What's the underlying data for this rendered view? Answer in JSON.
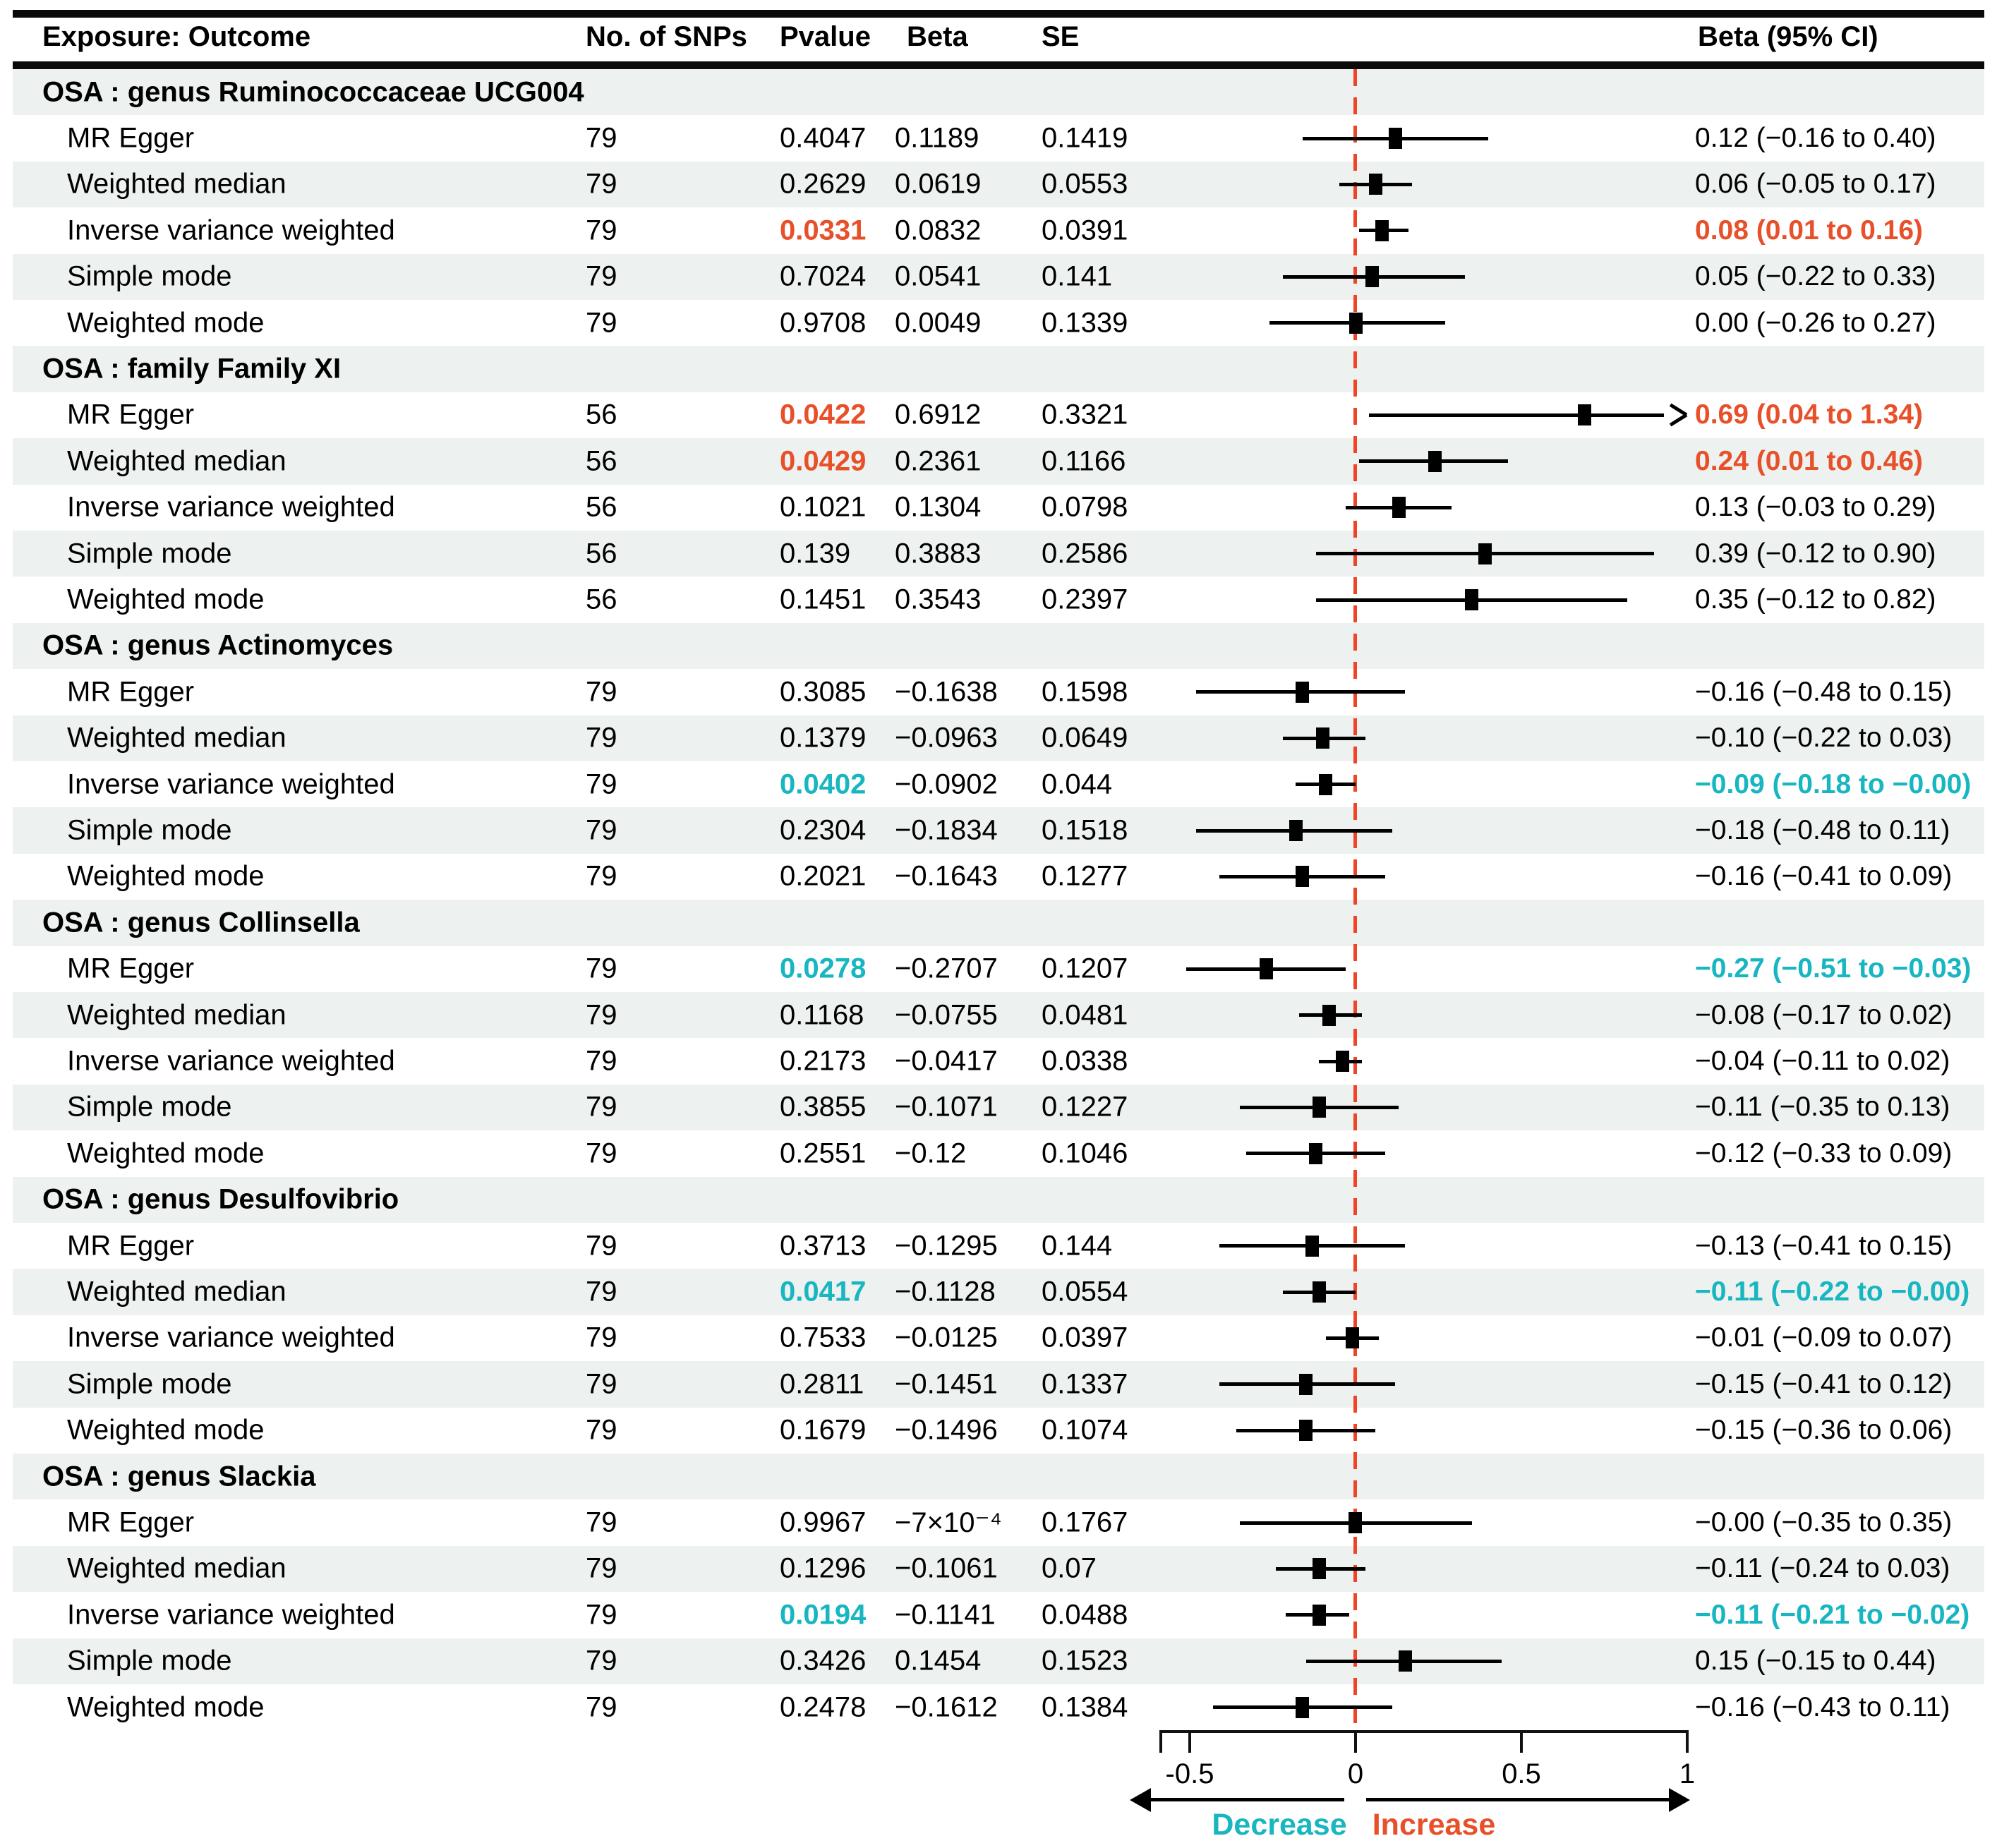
{
  "figure": {
    "colors": {
      "significant_positive": "#e8502a",
      "significant_negative": "#17b6c1",
      "stripe": "#edf1ef",
      "marker": "#000000",
      "zero_line": "#f04427"
    },
    "axis": {
      "tick_labels": [
        "-0.5",
        "0",
        "0.5",
        "1"
      ],
      "tick_values": [
        -0.5,
        0,
        0.5,
        1
      ],
      "decrease_label": "Decrease",
      "increase_label": "Increase"
    }
  },
  "chart_data": {
    "type": "forest",
    "title": "",
    "columns": [
      "Exposure: Outcome",
      "No. of SNPs",
      "Pvalue",
      "Beta",
      "SE",
      "Beta (95% CI)"
    ],
    "xlim": [
      -0.5,
      1
    ],
    "zero_line": 0,
    "legend_note": {
      "decrease": "Decrease",
      "increase": "Increase"
    },
    "groups": [
      {
        "label": "OSA : genus Ruminococcaceae UCG004",
        "rows": [
          {
            "method": "MR Egger",
            "snps": "79",
            "pvalue": "0.4047",
            "beta": "0.1189",
            "se": "0.1419",
            "est": 0.12,
            "lo": -0.16,
            "hi": 0.4,
            "ci_text": "0.12 (−0.16 to 0.40)",
            "sig": null,
            "clip_hi": false
          },
          {
            "method": "Weighted median",
            "snps": "79",
            "pvalue": "0.2629",
            "beta": "0.0619",
            "se": "0.0553",
            "est": 0.06,
            "lo": -0.05,
            "hi": 0.17,
            "ci_text": "0.06 (−0.05 to 0.17)",
            "sig": null,
            "clip_hi": false
          },
          {
            "method": "Inverse variance weighted",
            "snps": "79",
            "pvalue": "0.0331",
            "beta": "0.0832",
            "se": "0.0391",
            "est": 0.08,
            "lo": 0.01,
            "hi": 0.16,
            "ci_text": "0.08 (0.01 to 0.16)",
            "sig": "pos",
            "clip_hi": false
          },
          {
            "method": "Simple mode",
            "snps": "79",
            "pvalue": "0.7024",
            "beta": "0.0541",
            "se": "0.141",
            "est": 0.05,
            "lo": -0.22,
            "hi": 0.33,
            "ci_text": "0.05 (−0.22 to 0.33)",
            "sig": null,
            "clip_hi": false
          },
          {
            "method": "Weighted mode",
            "snps": "79",
            "pvalue": "0.9708",
            "beta": "0.0049",
            "se": "0.1339",
            "est": 0.0,
            "lo": -0.26,
            "hi": 0.27,
            "ci_text": "0.00 (−0.26 to 0.27)",
            "sig": null,
            "clip_hi": false
          }
        ]
      },
      {
        "label": "OSA : family Family XI",
        "rows": [
          {
            "method": "MR Egger",
            "snps": "56",
            "pvalue": "0.0422",
            "beta": "0.6912",
            "se": "0.3321",
            "est": 0.69,
            "lo": 0.04,
            "hi": 1.34,
            "ci_text": "0.69 (0.04 to 1.34)",
            "sig": "pos",
            "clip_hi": true
          },
          {
            "method": "Weighted median",
            "snps": "56",
            "pvalue": "0.0429",
            "beta": "0.2361",
            "se": "0.1166",
            "est": 0.24,
            "lo": 0.01,
            "hi": 0.46,
            "ci_text": "0.24 (0.01 to 0.46)",
            "sig": "pos",
            "clip_hi": false
          },
          {
            "method": "Inverse variance weighted",
            "snps": "56",
            "pvalue": "0.1021",
            "beta": "0.1304",
            "se": "0.0798",
            "est": 0.13,
            "lo": -0.03,
            "hi": 0.29,
            "ci_text": "0.13 (−0.03 to 0.29)",
            "sig": null,
            "clip_hi": false
          },
          {
            "method": "Simple mode",
            "snps": "56",
            "pvalue": "0.139",
            "beta": "0.3883",
            "se": "0.2586",
            "est": 0.39,
            "lo": -0.12,
            "hi": 0.9,
            "ci_text": "0.39 (−0.12 to 0.90)",
            "sig": null,
            "clip_hi": false
          },
          {
            "method": "Weighted mode",
            "snps": "56",
            "pvalue": "0.1451",
            "beta": "0.3543",
            "se": "0.2397",
            "est": 0.35,
            "lo": -0.12,
            "hi": 0.82,
            "ci_text": "0.35 (−0.12 to 0.82)",
            "sig": null,
            "clip_hi": false
          }
        ]
      },
      {
        "label": "OSA : genus Actinomyces",
        "rows": [
          {
            "method": "MR Egger",
            "snps": "79",
            "pvalue": "0.3085",
            "beta": "−0.1638",
            "se": "0.1598",
            "est": -0.16,
            "lo": -0.48,
            "hi": 0.15,
            "ci_text": "−0.16 (−0.48 to 0.15)",
            "sig": null,
            "clip_hi": false
          },
          {
            "method": "Weighted median",
            "snps": "79",
            "pvalue": "0.1379",
            "beta": "−0.0963",
            "se": "0.0649",
            "est": -0.1,
            "lo": -0.22,
            "hi": 0.03,
            "ci_text": "−0.10 (−0.22 to 0.03)",
            "sig": null,
            "clip_hi": false
          },
          {
            "method": "Inverse variance weighted",
            "snps": "79",
            "pvalue": "0.0402",
            "beta": "−0.0902",
            "se": "0.044",
            "est": -0.09,
            "lo": -0.18,
            "hi": 0.0,
            "ci_text": "−0.09 (−0.18 to −0.00)",
            "sig": "neg",
            "clip_hi": false
          },
          {
            "method": "Simple mode",
            "snps": "79",
            "pvalue": "0.2304",
            "beta": "−0.1834",
            "se": "0.1518",
            "est": -0.18,
            "lo": -0.48,
            "hi": 0.11,
            "ci_text": "−0.18 (−0.48 to 0.11)",
            "sig": null,
            "clip_hi": false
          },
          {
            "method": "Weighted mode",
            "snps": "79",
            "pvalue": "0.2021",
            "beta": "−0.1643",
            "se": "0.1277",
            "est": -0.16,
            "lo": -0.41,
            "hi": 0.09,
            "ci_text": "−0.16 (−0.41 to 0.09)",
            "sig": null,
            "clip_hi": false
          }
        ]
      },
      {
        "label": "OSA : genus Collinsella",
        "rows": [
          {
            "method": "MR Egger",
            "snps": "79",
            "pvalue": "0.0278",
            "beta": "−0.2707",
            "se": "0.1207",
            "est": -0.27,
            "lo": -0.51,
            "hi": -0.03,
            "ci_text": "−0.27 (−0.51 to −0.03)",
            "sig": "neg",
            "clip_hi": false
          },
          {
            "method": "Weighted median",
            "snps": "79",
            "pvalue": "0.1168",
            "beta": "−0.0755",
            "se": "0.0481",
            "est": -0.08,
            "lo": -0.17,
            "hi": 0.02,
            "ci_text": "−0.08 (−0.17 to 0.02)",
            "sig": null,
            "clip_hi": false
          },
          {
            "method": "Inverse variance weighted",
            "snps": "79",
            "pvalue": "0.2173",
            "beta": "−0.0417",
            "se": "0.0338",
            "est": -0.04,
            "lo": -0.11,
            "hi": 0.02,
            "ci_text": "−0.04 (−0.11 to 0.02)",
            "sig": null,
            "clip_hi": false
          },
          {
            "method": "Simple mode",
            "snps": "79",
            "pvalue": "0.3855",
            "beta": "−0.1071",
            "se": "0.1227",
            "est": -0.11,
            "lo": -0.35,
            "hi": 0.13,
            "ci_text": "−0.11 (−0.35 to 0.13)",
            "sig": null,
            "clip_hi": false
          },
          {
            "method": "Weighted mode",
            "snps": "79",
            "pvalue": "0.2551",
            "beta": "−0.12",
            "se": "0.1046",
            "est": -0.12,
            "lo": -0.33,
            "hi": 0.09,
            "ci_text": "−0.12 (−0.33 to 0.09)",
            "sig": null,
            "clip_hi": false
          }
        ]
      },
      {
        "label": "OSA : genus Desulfovibrio",
        "rows": [
          {
            "method": "MR Egger",
            "snps": "79",
            "pvalue": "0.3713",
            "beta": "−0.1295",
            "se": "0.144",
            "est": -0.13,
            "lo": -0.41,
            "hi": 0.15,
            "ci_text": "−0.13 (−0.41 to 0.15)",
            "sig": null,
            "clip_hi": false
          },
          {
            "method": "Weighted median",
            "snps": "79",
            "pvalue": "0.0417",
            "beta": "−0.1128",
            "se": "0.0554",
            "est": -0.11,
            "lo": -0.22,
            "hi": 0.0,
            "ci_text": "−0.11 (−0.22 to −0.00)",
            "sig": "neg",
            "clip_hi": false
          },
          {
            "method": "Inverse variance weighted",
            "snps": "79",
            "pvalue": "0.7533",
            "beta": "−0.0125",
            "se": "0.0397",
            "est": -0.01,
            "lo": -0.09,
            "hi": 0.07,
            "ci_text": "−0.01 (−0.09 to 0.07)",
            "sig": null,
            "clip_hi": false
          },
          {
            "method": "Simple mode",
            "snps": "79",
            "pvalue": "0.2811",
            "beta": "−0.1451",
            "se": "0.1337",
            "est": -0.15,
            "lo": -0.41,
            "hi": 0.12,
            "ci_text": "−0.15 (−0.41 to 0.12)",
            "sig": null,
            "clip_hi": false
          },
          {
            "method": "Weighted mode",
            "snps": "79",
            "pvalue": "0.1679",
            "beta": "−0.1496",
            "se": "0.1074",
            "est": -0.15,
            "lo": -0.36,
            "hi": 0.06,
            "ci_text": "−0.15 (−0.36 to 0.06)",
            "sig": null,
            "clip_hi": false
          }
        ]
      },
      {
        "label": "OSA : genus Slackia",
        "rows": [
          {
            "method": "MR Egger",
            "snps": "79",
            "pvalue": "0.9967",
            "beta": "−7×10⁻⁴",
            "se": "0.1767",
            "est": -0.0007,
            "lo": -0.35,
            "hi": 0.35,
            "ci_text": "−0.00 (−0.35 to 0.35)",
            "sig": null,
            "clip_hi": false
          },
          {
            "method": "Weighted median",
            "snps": "79",
            "pvalue": "0.1296",
            "beta": "−0.1061",
            "se": "0.07",
            "est": -0.11,
            "lo": -0.24,
            "hi": 0.03,
            "ci_text": "−0.11 (−0.24 to 0.03)",
            "sig": null,
            "clip_hi": false
          },
          {
            "method": "Inverse variance weighted",
            "snps": "79",
            "pvalue": "0.0194",
            "beta": "−0.1141",
            "se": "0.0488",
            "est": -0.11,
            "lo": -0.21,
            "hi": -0.02,
            "ci_text": "−0.11 (−0.21 to −0.02)",
            "sig": "neg",
            "clip_hi": false
          },
          {
            "method": "Simple mode",
            "snps": "79",
            "pvalue": "0.3426",
            "beta": "0.1454",
            "se": "0.1523",
            "est": 0.15,
            "lo": -0.15,
            "hi": 0.44,
            "ci_text": "0.15 (−0.15 to 0.44)",
            "sig": null,
            "clip_hi": false
          },
          {
            "method": "Weighted mode",
            "snps": "79",
            "pvalue": "0.2478",
            "beta": "−0.1612",
            "se": "0.1384",
            "est": -0.16,
            "lo": -0.43,
            "hi": 0.11,
            "ci_text": "−0.16 (−0.43 to 0.11)",
            "sig": null,
            "clip_hi": false
          }
        ]
      }
    ]
  }
}
